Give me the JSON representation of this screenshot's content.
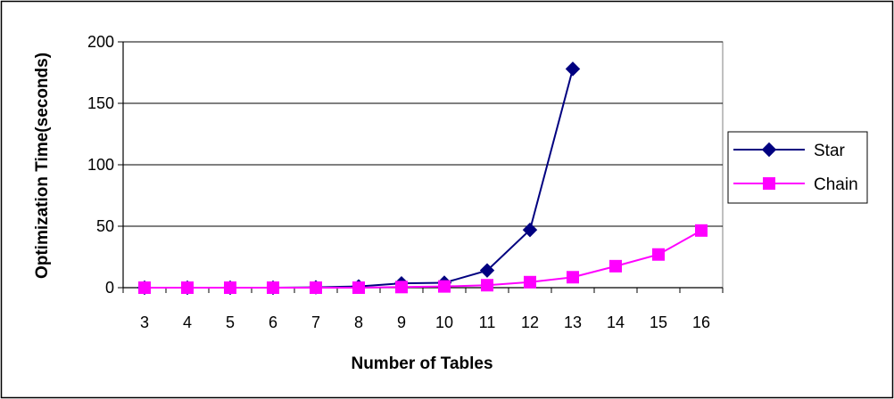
{
  "chart_data": {
    "type": "line",
    "xlabel": "Number of Tables",
    "ylabel": "Optimization Time(seconds)",
    "categories": [
      "3",
      "4",
      "5",
      "6",
      "7",
      "8",
      "9",
      "10",
      "11",
      "12",
      "13",
      "14",
      "15",
      "16"
    ],
    "ylim": [
      0,
      200
    ],
    "yticks": [
      "0",
      "50",
      "100",
      "150",
      "200"
    ],
    "grid": "horizontal",
    "legend_position": "right",
    "series": [
      {
        "name": "Star",
        "color": "#000080",
        "marker": "diamond",
        "values": [
          0,
          0,
          0,
          0,
          0.3,
          1,
          3.5,
          4,
          14,
          47,
          178,
          null,
          null,
          null
        ]
      },
      {
        "name": "Chain",
        "color": "#ff00ff",
        "marker": "square",
        "values": [
          0,
          0,
          0,
          0,
          0,
          0,
          0.5,
          1,
          2,
          4.5,
          8.5,
          17.5,
          27,
          46.5
        ]
      }
    ]
  }
}
